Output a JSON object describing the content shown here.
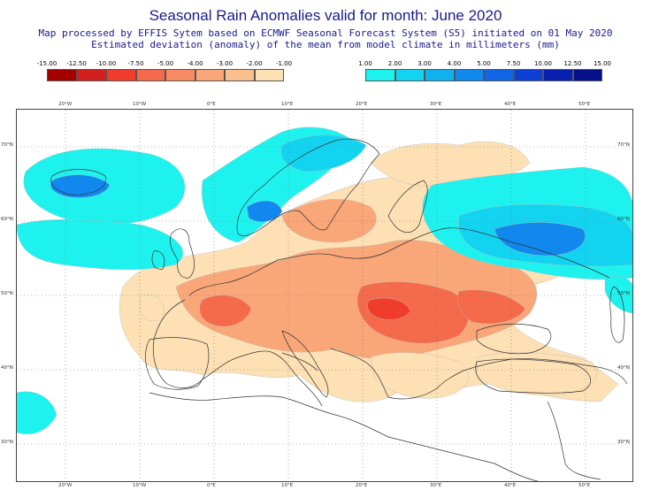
{
  "title": "Seasonal Rain Anomalies valid for month: June 2020",
  "subtitle_line1": "Map processed by EFFIS Sytem based on ECMWF Seasonal Forecast System (S5) initiated on 01 May 2020",
  "subtitle_line2": "Estimated deviation (anomaly) of the mean from model climate in millimeters (mm)",
  "legend": {
    "dry": {
      "labels": [
        "-15.00",
        "-12.50",
        "-10.00",
        "-7.50",
        "-5.00",
        "-4.00",
        "-3.00",
        "-2.00",
        "-1.00"
      ],
      "colors": [
        "#a50000",
        "#d21f1f",
        "#f03c2a",
        "#f46a4a",
        "#f78a62",
        "#f9a679",
        "#fbbf8e",
        "#fde0b4"
      ]
    },
    "wet": {
      "labels": [
        "1.00",
        "2.00",
        "3.00",
        "4.00",
        "5.00",
        "7.50",
        "10.00",
        "12.50",
        "15.00"
      ],
      "colors": [
        "#1ef2ef",
        "#12d4f0",
        "#0fb2ef",
        "#1088ee",
        "#0f66e6",
        "#0c3fd6",
        "#0820b0",
        "#040f8a"
      ]
    }
  },
  "map": {
    "lon_labels_top": [
      "20°W",
      "10°W",
      "0°E",
      "10°E",
      "20°E",
      "30°E",
      "40°E",
      "50°E"
    ],
    "lon_labels_bottom": [
      "20°W",
      "10°W",
      "0°E",
      "10°E",
      "20°E",
      "30°E",
      "40°E",
      "50°E"
    ],
    "lat_labels_left": [
      "70°N",
      "60°N",
      "50°N",
      "40°N",
      "30°N"
    ],
    "lat_labels_right": [
      "70°N",
      "60°N",
      "50°N",
      "40°N",
      "30°N"
    ],
    "colors": {
      "land": "#ffffff",
      "coast": "#333333",
      "dry_light": "#fde0b4",
      "dry_mid": "#f9a679",
      "dry_strong": "#f46a4a",
      "dry_max": "#f03c2a",
      "wet_light": "#1ef2ef",
      "wet_mid": "#12d4f0",
      "wet_strong": "#1088ee",
      "wet_max": "#0f66e6"
    }
  }
}
